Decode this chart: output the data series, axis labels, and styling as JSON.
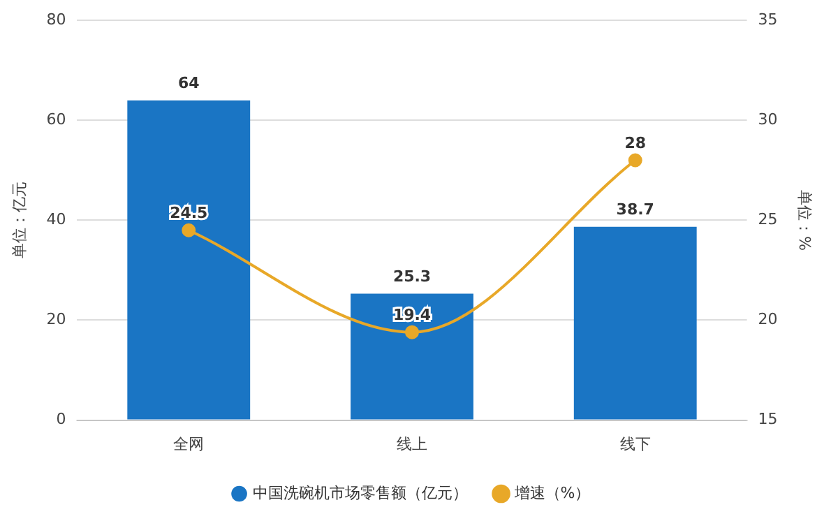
{
  "chart_data": {
    "type": "bar",
    "categories": [
      "全网",
      "线上",
      "线下"
    ],
    "series": [
      {
        "name": "中国洗碗机市场零售额（亿元）",
        "color": "#1a75c4",
        "values": [
          64,
          25.3,
          38.7
        ]
      },
      {
        "name": "增速（%）",
        "type": "line",
        "axis": "y2",
        "color": "#e8a828",
        "values": [
          24.5,
          19.4,
          28
        ]
      }
    ],
    "ylabel": "单位：亿元",
    "y2label": "单位：%",
    "ylim": [
      0,
      80
    ],
    "yticks": [
      0,
      20,
      40,
      60,
      80
    ],
    "y2lim": [
      15,
      35
    ],
    "y2ticks": [
      15,
      20,
      25,
      30,
      35
    ],
    "grid": "y",
    "legend": "bottom",
    "marker": "circle",
    "line_style": "solid",
    "data_labels": true
  }
}
